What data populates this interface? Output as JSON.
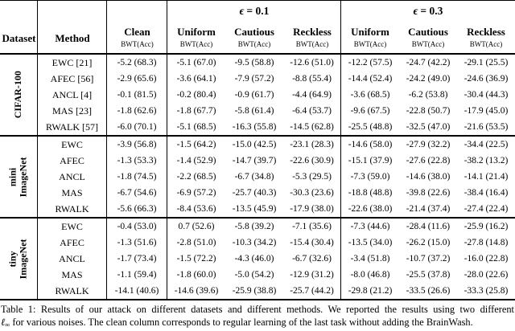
{
  "header": {
    "dataset": "Dataset",
    "method": "Method",
    "clean": "Clean",
    "sub": "BWT(Acc)",
    "eps_symbol": "ϵ",
    "eps1": "= 0.1",
    "eps2": "= 0.3",
    "cols": [
      "Uniform",
      "Cautious",
      "Reckless",
      "Uniform",
      "Cautious",
      "Reckless"
    ]
  },
  "groups": [
    {
      "label_lines": [
        "CIFAR-100"
      ],
      "rows": [
        {
          "method": "EWC [21]",
          "clean": "-5.2 (68.3)",
          "e01_uniform": "-5.1 (67.0)",
          "e01_cautious": "-9.5 (58.8)",
          "e01_reckless": "-12.6 (51.0)",
          "e03_uniform": "-12.2 (57.5)",
          "e03_cautious": "-24.7 (42.2)",
          "e03_reckless": "-29.1 (25.5)"
        },
        {
          "method": "AFEC [56]",
          "clean": "-2.9 (65.6)",
          "e01_uniform": "-3.6 (64.1)",
          "e01_cautious": "-7.9 (57.2)",
          "e01_reckless": "-8.8 (55.4)",
          "e03_uniform": "-14.4 (52.4)",
          "e03_cautious": "-24.2 (49.0)",
          "e03_reckless": "-24.6 (36.9)"
        },
        {
          "method": "ANCL [4]",
          "clean": "-0.1 (81.5)",
          "e01_uniform": "-0.2 (80.4)",
          "e01_cautious": "-0.9 (61.7)",
          "e01_reckless": "-4.4 (64.9)",
          "e03_uniform": "-3.6 (68.5)",
          "e03_cautious": "-6.2 (53.8)",
          "e03_reckless": "-30.4 (44.3)"
        },
        {
          "method": "MAS [23]",
          "clean": "-1.8 (62.6)",
          "e01_uniform": "-1.8 (67.7)",
          "e01_cautious": "-5.8 (61.4)",
          "e01_reckless": "-6.4 (53.7)",
          "e03_uniform": "-9.6 (67.5)",
          "e03_cautious": "-22.8 (50.7)",
          "e03_reckless": "-17.9 (45.0)"
        },
        {
          "method": "RWALK [57]",
          "clean": "-6.0 (70.1)",
          "e01_uniform": "-5.1 (68.5)",
          "e01_cautious": "-16.3 (55.8)",
          "e01_reckless": "-14.5 (62.8)",
          "e03_uniform": "-25.5 (48.8)",
          "e03_cautious": "-32.5 (47.0)",
          "e03_reckless": "-21.6 (53.5)"
        }
      ]
    },
    {
      "label_lines": [
        "mini",
        "ImageNet"
      ],
      "rows": [
        {
          "method": "EWC",
          "clean": "-3.9 (56.8)",
          "e01_uniform": "-1.5 (64.2)",
          "e01_cautious": "-15.0 (42.5)",
          "e01_reckless": "-23.1 (28.3)",
          "e03_uniform": "-14.6 (58.0)",
          "e03_cautious": "-27.9 (32.2)",
          "e03_reckless": "-34.4 (22.5)"
        },
        {
          "method": "AFEC",
          "clean": "-1.3 (53.3)",
          "e01_uniform": "-1.4 (52.9)",
          "e01_cautious": "-14.7 (39.7)",
          "e01_reckless": "-22.6 (30.9)",
          "e03_uniform": "-15.1 (37.9)",
          "e03_cautious": "-27.6 (22.8)",
          "e03_reckless": "-38.2 (13.2)"
        },
        {
          "method": "ANCL",
          "clean": "-1.8 (74.5)",
          "e01_uniform": "-2.2 (68.5)",
          "e01_cautious": "-6.7 (34.8)",
          "e01_reckless": "-5.3 (29.5)",
          "e03_uniform": "-7.3 (59.0)",
          "e03_cautious": "-14.6 (38.0)",
          "e03_reckless": "-14.1 (21.4)"
        },
        {
          "method": "MAS",
          "clean": "-6.7 (54.6)",
          "e01_uniform": "-6.9 (57.2)",
          "e01_cautious": "-25.7 (40.3)",
          "e01_reckless": "-30.3 (23.6)",
          "e03_uniform": "-18.8 (48.8)",
          "e03_cautious": "-39.8 (22.6)",
          "e03_reckless": "-38.4 (16.4)"
        },
        {
          "method": "RWALK",
          "clean": "-5.6 (66.3)",
          "e01_uniform": "-8.4 (53.6)",
          "e01_cautious": "-13.5 (45.9)",
          "e01_reckless": "-17.9 (38.0)",
          "e03_uniform": "-22.6 (38.0)",
          "e03_cautious": "-21.4 (37.4)",
          "e03_reckless": "-27.4 (22.4)"
        }
      ]
    },
    {
      "label_lines": [
        "tiny",
        "ImageNet"
      ],
      "rows": [
        {
          "method": "EWC",
          "clean": "-0.4 (53.0)",
          "e01_uniform": "0.7 (52.6)",
          "e01_cautious": "-5.8 (39.2)",
          "e01_reckless": "-7.1 (35.6)",
          "e03_uniform": "-7.3 (44.6)",
          "e03_cautious": "-28.4 (11.6)",
          "e03_reckless": "-25.9 (16.2)"
        },
        {
          "method": "AFEC",
          "clean": "-1.3 (51.6)",
          "e01_uniform": "-2.8 (51.0)",
          "e01_cautious": "-10.3 (34.2)",
          "e01_reckless": "-15.4 (30.4)",
          "e03_uniform": "-13.5 (34.0)",
          "e03_cautious": "-26.2 (15.0)",
          "e03_reckless": "-27.8 (14.8)"
        },
        {
          "method": "ANCL",
          "clean": "-1.7 (73.4)",
          "e01_uniform": "-1.5 (72.2)",
          "e01_cautious": "-4.3 (46.0)",
          "e01_reckless": "-6.7 (32.6)",
          "e03_uniform": "-3.4 (51.8)",
          "e03_cautious": "-10.7 (37.2)",
          "e03_reckless": "-16.0 (22.8)"
        },
        {
          "method": "MAS",
          "clean": "-1.1 (59.4)",
          "e01_uniform": "-1.8 (60.0)",
          "e01_cautious": "-5.0 (54.2)",
          "e01_reckless": "-12.9 (31.2)",
          "e03_uniform": "-8.0 (46.8)",
          "e03_cautious": "-25.5 (37.8)",
          "e03_reckless": "-28.0 (22.6)"
        },
        {
          "method": "RWALK",
          "clean": "-14.1 (40.6)",
          "e01_uniform": "-14.6 (39.6)",
          "e01_cautious": "-25.9 (38.8)",
          "e01_reckless": "-25.7 (44.2)",
          "e03_uniform": "-29.8 (21.2)",
          "e03_cautious": "-33.5 (26.6)",
          "e03_reckless": "-33.3 (25.8)"
        }
      ]
    }
  ],
  "caption": {
    "line1": "Table 1: Results of our attack on different datasets and different methods. We reported the results using two different",
    "ell": "ℓ",
    "inf": "∞",
    "line2": "for various noises. The clean column corresponds to regular learning of the last task without adding the BrainWash."
  }
}
